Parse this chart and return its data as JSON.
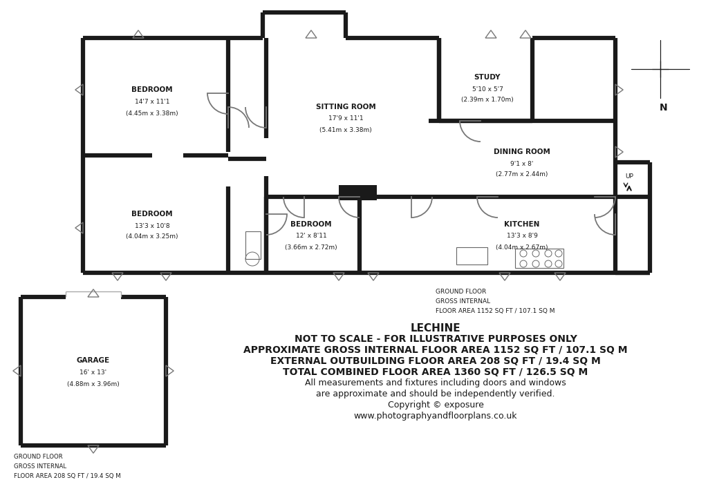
{
  "bg_color": "#ffffff",
  "wall_color": "#1a1a1a",
  "text_color": "#1a1a1a",
  "center_text_lines": [
    {
      "text": "LECHINE",
      "bold": true,
      "size": 11
    },
    {
      "text": "NOT TO SCALE - FOR ILLUSTRATIVE PURPOSES ONLY",
      "bold": true,
      "size": 10
    },
    {
      "text": "APPROXIMATE GROSS INTERNAL FLOOR AREA 1152 SQ FT / 107.1 SQ M",
      "bold": true,
      "size": 10
    },
    {
      "text": "EXTERNAL OUTBUILDING FLOOR AREA 208 SQ FT / 19.4 SQ M",
      "bold": true,
      "size": 10
    },
    {
      "text": "TOTAL COMBINED FLOOR AREA 1360 SQ FT / 126.5 SQ M",
      "bold": true,
      "size": 10
    },
    {
      "text": "All measurements and fixtures including doors and windows",
      "bold": false,
      "size": 9
    },
    {
      "text": "are approximate and should be independently verified.",
      "bold": false,
      "size": 9
    },
    {
      "text": "Copyright © exposure",
      "bold": false,
      "size": 9
    },
    {
      "text": "www.photographyandfloorplans.co.uk",
      "bold": false,
      "size": 9
    }
  ]
}
